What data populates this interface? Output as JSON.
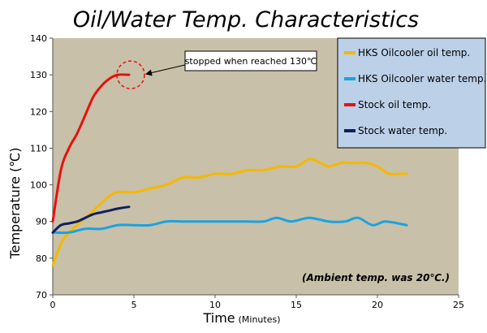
{
  "chart_data": {
    "type": "line",
    "title": "Oil/Water Temp. Characteristics",
    "xlabel": "Time",
    "xlabel_unit": "(Minutes)",
    "ylabel": "Temperature (℃)",
    "xlim": [
      0,
      25
    ],
    "ylim": [
      70,
      140
    ],
    "x_ticks": [
      0,
      5,
      10,
      15,
      20,
      25
    ],
    "y_ticks": [
      70,
      80,
      90,
      100,
      110,
      120,
      130,
      140
    ],
    "grid": false,
    "legend_position": "top-right",
    "series": [
      {
        "name": "HKS Oilcooler oil temp.",
        "color": "#f5b800",
        "x": [
          0,
          0.5,
          1,
          1.5,
          2,
          2.5,
          3,
          3.5,
          4,
          5,
          6,
          7,
          8,
          9,
          10,
          11,
          12,
          13,
          14,
          15,
          15.8,
          16.5,
          17,
          17.8,
          18.5,
          19.3,
          20,
          20.7,
          21.3,
          21.8
        ],
        "values": [
          78,
          84,
          87,
          89,
          91,
          93,
          95,
          97,
          98,
          98,
          99,
          100,
          102,
          102,
          103,
          103,
          104,
          104,
          105,
          105,
          107,
          106,
          105,
          106,
          106,
          106,
          105,
          103,
          103,
          103
        ]
      },
      {
        "name": "HKS Oilcooler water temp.",
        "color": "#1aa3e0",
        "x": [
          0,
          1,
          2,
          3,
          4,
          5,
          6,
          7,
          8,
          9,
          10,
          11,
          12,
          13,
          13.8,
          14.7,
          15.8,
          17,
          18,
          18.8,
          19.7,
          20.5,
          21.8
        ],
        "values": [
          87,
          87,
          88,
          88,
          89,
          89,
          89,
          90,
          90,
          90,
          90,
          90,
          90,
          90,
          91,
          90,
          91,
          90,
          90,
          91,
          89,
          90,
          89
        ]
      },
      {
        "name": "Stock oil temp.",
        "color": "#e81010",
        "x": [
          0,
          0.5,
          1,
          1.5,
          2,
          2.5,
          3,
          3.5,
          4,
          4.7
        ],
        "values": [
          90,
          104,
          110,
          114,
          119,
          124,
          127,
          129,
          130,
          130
        ]
      },
      {
        "name": "Stock water temp.",
        "color": "#0f1f5c",
        "x": [
          0,
          0.5,
          1,
          1.5,
          2,
          2.5,
          3,
          3.5,
          4,
          4.7
        ],
        "values": [
          87,
          89,
          89.5,
          90,
          91,
          92,
          92.5,
          93,
          93.5,
          94
        ]
      }
    ],
    "annotations": {
      "callout": "stopped when reached 130℃",
      "note": "(Ambient temp. was 20℃.)"
    },
    "colors": {
      "plot_background": "#c8c0a8",
      "legend_background": "#bcd0e8"
    }
  }
}
